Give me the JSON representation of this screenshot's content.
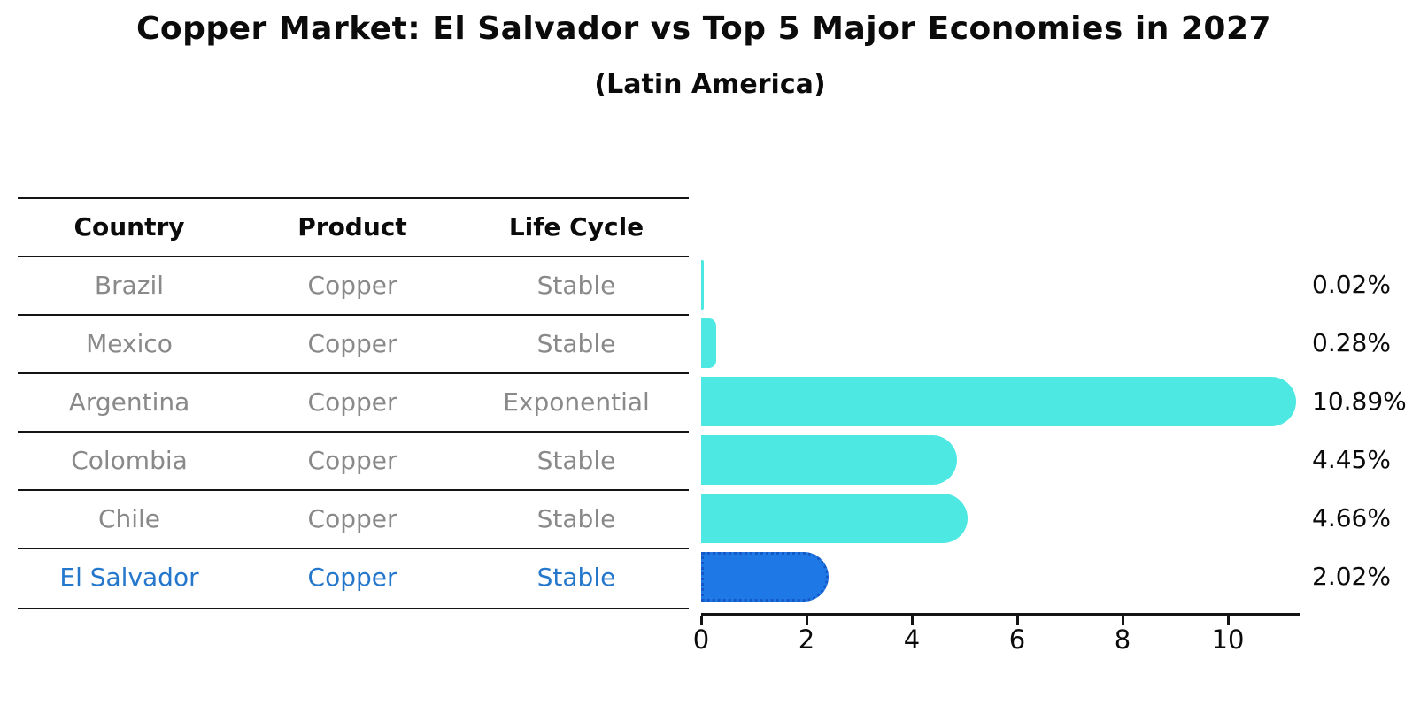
{
  "title": "Copper Market: El Salvador vs Top 5 Major Economies in 2027",
  "subtitle": "(Latin America)",
  "table": {
    "headers": [
      "Country",
      "Product",
      "Life Cycle"
    ],
    "rows": [
      {
        "country": "Brazil",
        "product": "Copper",
        "life_cycle": "Stable",
        "highlight": false
      },
      {
        "country": "Mexico",
        "product": "Copper",
        "life_cycle": "Stable",
        "highlight": false
      },
      {
        "country": "Argentina",
        "product": "Copper",
        "life_cycle": "Exponential",
        "highlight": false
      },
      {
        "country": "Colombia",
        "product": "Copper",
        "life_cycle": "Stable",
        "highlight": false
      },
      {
        "country": "Chile",
        "product": "Copper",
        "life_cycle": "Stable",
        "highlight": false
      },
      {
        "country": "El Salvador",
        "product": "Copper",
        "life_cycle": "Stable",
        "highlight": true
      }
    ]
  },
  "chart_data": {
    "type": "bar",
    "orientation": "horizontal",
    "title": "Copper Market: El Salvador vs Top 5 Major Economies in 2027",
    "subtitle": "(Latin America)",
    "categories": [
      "Brazil",
      "Mexico",
      "Argentina",
      "Colombia",
      "Chile",
      "El Salvador"
    ],
    "values": [
      0.02,
      0.28,
      10.89,
      4.45,
      4.66,
      2.02
    ],
    "value_labels": [
      "0.02%",
      "0.28%",
      "10.89%",
      "4.45%",
      "4.66%",
      "2.02%"
    ],
    "x_ticks": [
      "0",
      "2",
      "4",
      "6",
      "8",
      "10"
    ],
    "x_tick_values": [
      0,
      2,
      4,
      6,
      8,
      10
    ],
    "xlim": [
      0,
      11.4
    ],
    "grid": false,
    "legend": "none",
    "highlight_index": 5
  },
  "colors": {
    "bar_color": "#4DE8E2",
    "hl_bar": "#1E79E6",
    "hl_border": "#1459C4",
    "hl_text": "#2577CC",
    "gray_text": "#898989"
  }
}
